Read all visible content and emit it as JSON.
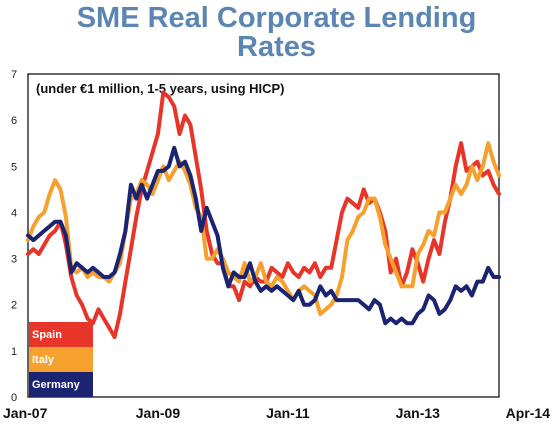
{
  "page": {
    "title_line1": "SME Real Corporate Lending",
    "title_line2": "Rates"
  },
  "chart_data": {
    "type": "line",
    "title": "SME Real Corporate Lending Rates",
    "subtitle": "(under €1 million, 1-5 years, using HICP)",
    "xlabel": "",
    "ylabel": "",
    "ylim": [
      0,
      7
    ],
    "yticks": [
      "0",
      "1",
      "2",
      "3",
      "4",
      "5",
      "6",
      "7"
    ],
    "xticks": [
      "Jan-07",
      "Jan-09",
      "Jan-11",
      "Jan-13",
      "Apr-14"
    ],
    "grid": false,
    "legend_position": "bottom-left",
    "colors": {
      "Spain": "#e8352a",
      "Italy": "#f6a02d",
      "Germany": "#1a2470",
      "title": "#5b86b3"
    },
    "x": [
      "2007-01",
      "2007-02",
      "2007-03",
      "2007-04",
      "2007-05",
      "2007-06",
      "2007-07",
      "2007-08",
      "2007-09",
      "2007-10",
      "2007-11",
      "2007-12",
      "2008-01",
      "2008-02",
      "2008-03",
      "2008-04",
      "2008-05",
      "2008-06",
      "2008-07",
      "2008-08",
      "2008-09",
      "2008-10",
      "2008-11",
      "2008-12",
      "2009-01",
      "2009-02",
      "2009-03",
      "2009-04",
      "2009-05",
      "2009-06",
      "2009-07",
      "2009-08",
      "2009-09",
      "2009-10",
      "2009-11",
      "2009-12",
      "2010-01",
      "2010-02",
      "2010-03",
      "2010-04",
      "2010-05",
      "2010-06",
      "2010-07",
      "2010-08",
      "2010-09",
      "2010-10",
      "2010-11",
      "2010-12",
      "2011-01",
      "2011-02",
      "2011-03",
      "2011-04",
      "2011-05",
      "2011-06",
      "2011-07",
      "2011-08",
      "2011-09",
      "2011-10",
      "2011-11",
      "2011-12",
      "2012-01",
      "2012-02",
      "2012-03",
      "2012-04",
      "2012-05",
      "2012-06",
      "2012-07",
      "2012-08",
      "2012-09",
      "2012-10",
      "2012-11",
      "2012-12",
      "2013-01",
      "2013-02",
      "2013-03",
      "2013-04",
      "2013-05",
      "2013-06",
      "2013-07",
      "2013-08",
      "2013-09",
      "2013-10",
      "2013-11",
      "2013-12",
      "2014-01",
      "2014-02",
      "2014-03",
      "2014-04"
    ],
    "series": [
      {
        "name": "Spain",
        "values": [
          3.1,
          3.2,
          3.1,
          3.3,
          3.5,
          3.6,
          3.8,
          3.3,
          2.6,
          2.2,
          2.0,
          1.7,
          1.6,
          1.9,
          1.7,
          1.5,
          1.3,
          1.8,
          2.5,
          3.2,
          3.9,
          4.5,
          4.9,
          5.3,
          5.7,
          6.6,
          6.5,
          6.3,
          5.7,
          6.1,
          5.9,
          5.2,
          4.5,
          3.6,
          3.1,
          2.9,
          2.9,
          2.4,
          2.4,
          2.1,
          2.5,
          2.4,
          2.6,
          2.5,
          2.5,
          2.8,
          2.7,
          2.6,
          2.9,
          2.7,
          2.6,
          2.8,
          2.7,
          2.9,
          2.6,
          2.8,
          2.8,
          3.4,
          4.0,
          4.3,
          4.2,
          4.1,
          4.5,
          4.2,
          4.3,
          4.0,
          3.6,
          2.7,
          3.0,
          2.4,
          2.7,
          3.2,
          2.9,
          2.5,
          3.0,
          3.4,
          3.1,
          3.8,
          4.3,
          5.0,
          5.5,
          4.9,
          5.0,
          5.1,
          4.8,
          4.9,
          4.6,
          4.4
        ]
      },
      {
        "name": "Italy",
        "values": [
          3.4,
          3.7,
          3.9,
          4.0,
          4.4,
          4.7,
          4.5,
          3.9,
          2.8,
          2.7,
          2.8,
          2.6,
          2.7,
          2.6,
          2.6,
          2.5,
          2.7,
          2.9,
          3.6,
          4.3,
          4.4,
          4.7,
          4.6,
          4.4,
          4.7,
          5.0,
          4.7,
          4.9,
          5.1,
          4.9,
          4.6,
          4.1,
          3.9,
          3.0,
          3.0,
          3.2,
          3.0,
          2.7,
          2.6,
          2.5,
          2.9,
          2.5,
          2.6,
          2.9,
          2.5,
          2.4,
          2.6,
          2.5,
          2.3,
          2.1,
          2.3,
          2.4,
          2.3,
          2.2,
          1.8,
          1.9,
          2.0,
          2.2,
          2.6,
          3.4,
          3.6,
          3.9,
          4.0,
          4.3,
          4.3,
          3.9,
          3.3,
          3.0,
          2.7,
          2.4,
          2.4,
          2.4,
          3.1,
          3.3,
          3.6,
          3.5,
          4.0,
          4.0,
          4.3,
          4.6,
          4.4,
          4.6,
          5.0,
          4.7,
          5.0,
          5.5,
          5.1,
          4.8
        ]
      },
      {
        "name": "Germany",
        "values": [
          3.5,
          3.4,
          3.5,
          3.6,
          3.7,
          3.8,
          3.8,
          3.5,
          2.7,
          2.9,
          2.8,
          2.7,
          2.8,
          2.7,
          2.6,
          2.6,
          2.7,
          3.1,
          3.6,
          4.6,
          4.3,
          4.6,
          4.3,
          4.6,
          4.9,
          4.9,
          5.0,
          5.4,
          5.0,
          5.1,
          4.8,
          4.3,
          3.6,
          4.1,
          3.8,
          3.5,
          2.8,
          2.4,
          2.7,
          2.6,
          2.6,
          2.9,
          2.5,
          2.3,
          2.4,
          2.3,
          2.4,
          2.3,
          2.2,
          2.1,
          2.3,
          2.0,
          2.0,
          2.1,
          2.4,
          2.2,
          2.3,
          2.1,
          2.1,
          2.1,
          2.1,
          2.1,
          2.0,
          1.9,
          2.1,
          2.0,
          1.6,
          1.7,
          1.6,
          1.7,
          1.6,
          1.6,
          1.8,
          1.9,
          2.2,
          2.1,
          1.8,
          1.9,
          2.1,
          2.4,
          2.3,
          2.4,
          2.2,
          2.5,
          2.5,
          2.8,
          2.6,
          2.6
        ]
      }
    ]
  }
}
